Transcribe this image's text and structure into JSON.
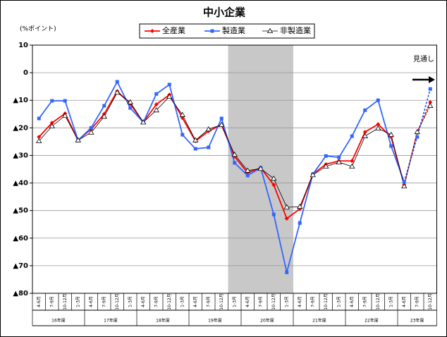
{
  "chart_data": {
    "type": "line",
    "title": "中小企業",
    "y_label": "(%ポイント)",
    "annotation": "見通し",
    "categories": [
      "4-6月",
      "7-9月",
      "10-12月",
      "1-3月",
      "4-6月",
      "7-9月",
      "10-12月",
      "1-3月",
      "4-6月",
      "7-9月",
      "10-12月",
      "1-3月",
      "4-6月",
      "7-9月",
      "10-12月",
      "1-3月",
      "4-6月",
      "7-9月",
      "10-12月",
      "1-3月",
      "4-6月",
      "7-9月",
      "10-12月",
      "1-3月",
      "4-6月",
      "7-9月",
      "10-12月",
      "1-3月",
      "4-6月",
      "7-9月",
      "10-12月"
    ],
    "groups": [
      "16年度",
      "17年度",
      "18年度",
      "19年度",
      "20年度",
      "21年度",
      "22年度",
      "23年度"
    ],
    "forecast_from": 28,
    "series": [
      {
        "name": "全産業",
        "color": "#ff0000",
        "marker": "diamond",
        "values": [
          -23.3,
          -18.2,
          -14.8,
          -24.5,
          -20.5,
          -15,
          -6.7,
          -11.3,
          -18,
          -11.5,
          -8,
          -16.4,
          -24.8,
          -21.2,
          -18.9,
          -30.4,
          -36.3,
          -34.5,
          -40.7,
          -52.9,
          -49.4,
          -36.8,
          -33.2,
          -32,
          -32,
          -21.5,
          -18.7,
          -23.3,
          -40.7,
          -21.7,
          -10.7
        ]
      },
      {
        "name": "製造業",
        "color": "#3366ff",
        "marker": "square",
        "values": [
          -16.6,
          -10.2,
          -10.2,
          -24.5,
          -20,
          -12,
          -3.3,
          -12.8,
          -18,
          -7.7,
          -4.3,
          -22.5,
          -27.6,
          -27.1,
          -16.6,
          -32.7,
          -37.3,
          -34.5,
          -51.4,
          -72.4,
          -54.5,
          -36.8,
          -30.2,
          -30.7,
          -23,
          -13.6,
          -10,
          -26.6,
          -39.6,
          -23.3,
          -5.9
        ]
      },
      {
        "name": "非製造業",
        "color": "#000000",
        "marker": "triangle",
        "values": [
          -24.8,
          -19.4,
          -15.6,
          -24.5,
          -21.7,
          -15.9,
          -7.2,
          -10.7,
          -18,
          -13.6,
          -8.7,
          -15.3,
          -24.5,
          -20.5,
          -18.9,
          -29.7,
          -35.5,
          -34.8,
          -38.4,
          -48.8,
          -48.6,
          -37.1,
          -34,
          -32.5,
          -34,
          -23,
          -20.2,
          -22.5,
          -41.2,
          -21.5,
          -12
        ]
      }
    ],
    "ylim": [
      -80,
      10
    ],
    "yticks": [
      {
        "value": -80,
        "label": "▲80"
      },
      {
        "value": -70,
        "label": "▲70"
      },
      {
        "value": -60,
        "label": "▲60"
      },
      {
        "value": -50,
        "label": "▲50"
      },
      {
        "value": -40,
        "label": "▲40"
      },
      {
        "value": -30,
        "label": "▲30"
      },
      {
        "value": -20,
        "label": "▲20"
      },
      {
        "value": -10,
        "label": "▲10"
      },
      0,
      10
    ],
    "grid": true
  }
}
